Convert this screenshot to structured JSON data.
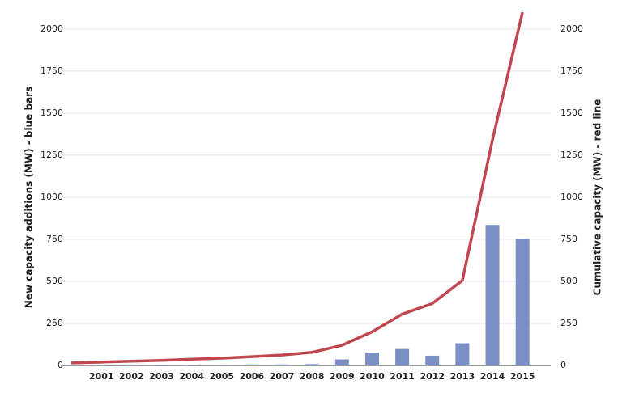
{
  "chart_data": {
    "type": "bar-line",
    "categories": [
      null,
      "2001",
      "2002",
      "2003",
      "2004",
      "2005",
      "2006",
      "2007",
      "2008",
      "2009",
      "2010",
      "2011",
      "2012",
      "2013",
      "2014",
      "2015"
    ],
    "ylabel": "New capacity additions (MW) - blue bars",
    "y2label": "Cumulative capacity (MW) - red line",
    "ylim": [
      0,
      2100
    ],
    "yticks": [
      0,
      250,
      500,
      750,
      1000,
      1250,
      1500,
      1750,
      2000
    ],
    "y2lim": [
      0,
      2100
    ],
    "y2ticks": [
      0,
      250,
      500,
      750,
      1000,
      1250,
      1500,
      1750,
      2000
    ],
    "grid": true,
    "series": [
      {
        "type": "bar",
        "color": "#7a8fc4",
        "values": [
          null,
          3,
          3,
          3,
          3,
          4,
          6,
          6,
          8,
          36,
          76,
          98,
          58,
          132,
          835,
          752
        ]
      },
      {
        "type": "line",
        "axis": "y2",
        "color": "#c0464f",
        "values": [
          15,
          20,
          25,
          30,
          37,
          43,
          52,
          62,
          78,
          120,
          200,
          305,
          368,
          505,
          1340,
          2100
        ]
      }
    ]
  }
}
